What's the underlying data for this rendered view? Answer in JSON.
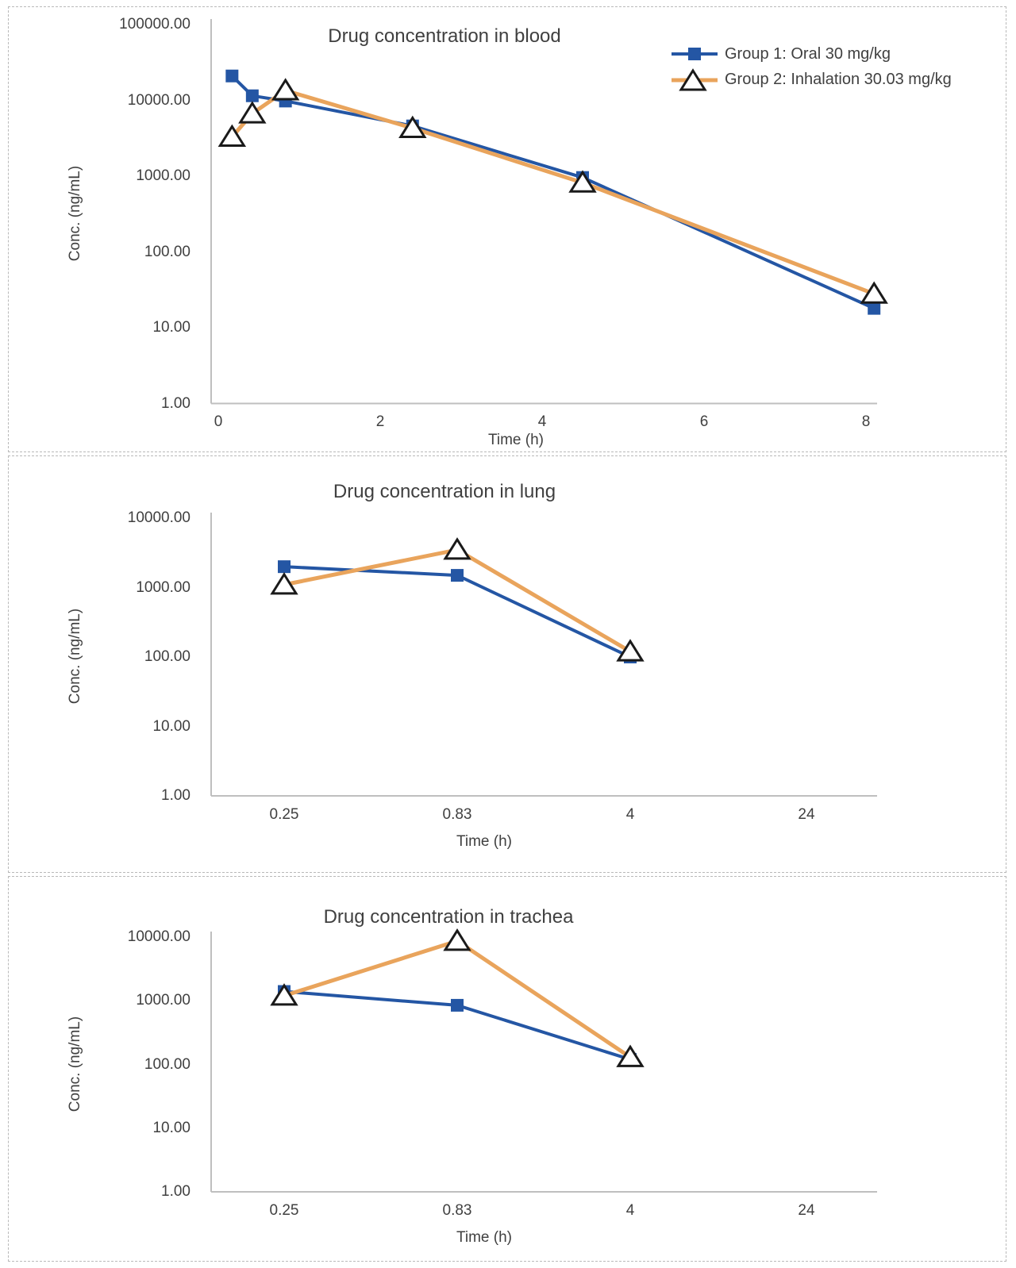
{
  "colors": {
    "group1_blue": "#2456a4",
    "group2_orange": "#e9a45c",
    "marker_fill": "#ffffff",
    "marker_outline": "#1a1a1a",
    "axis_line": "#bfbfbf",
    "text": "#404040",
    "panel_border": "#b9b9b9"
  },
  "legend": {
    "items": [
      {
        "label": "Group 1: Oral 30 mg/kg",
        "series": "group1",
        "marker": "square"
      },
      {
        "label": "Group 2: Inhalation 30.03 mg/kg",
        "series": "group2",
        "marker": "triangle"
      }
    ]
  },
  "chart_data": [
    {
      "id": "blood",
      "type": "line",
      "title": "Drug concentration in blood",
      "xlabel": "Time (h)",
      "ylabel": "Conc. (ng/mL)",
      "x_scale": "linear",
      "x_ticks": [
        0,
        2,
        4,
        6,
        8
      ],
      "xlim": [
        0,
        8.2
      ],
      "y_scale": "log",
      "ylim": [
        1,
        100000
      ],
      "y_tick_labels": [
        "100000.00",
        "10000.00",
        "1000.00",
        "100.00",
        "10.00",
        "1.00"
      ],
      "grid": false,
      "legend_position": "top-right",
      "series": [
        {
          "name": "Group 1: Oral 30 mg/kg",
          "marker": "square",
          "x": [
            0.17,
            0.42,
            0.83,
            2.4,
            4.5,
            8.1
          ],
          "y": [
            21000,
            11500,
            9800,
            4600,
            960,
            18
          ]
        },
        {
          "name": "Group 2: Inhalation 30.03 mg/kg",
          "marker": "triangle",
          "x": [
            0.17,
            0.42,
            0.83,
            2.4,
            4.5,
            8.1
          ],
          "y": [
            3300,
            6700,
            13500,
            4300,
            820,
            28
          ]
        }
      ]
    },
    {
      "id": "lung",
      "type": "line",
      "title": "Drug concentration in lung",
      "xlabel": "Time (h)",
      "ylabel": "Conc. (ng/mL)",
      "x_scale": "categorical",
      "categories": [
        "0.25",
        "0.83",
        "4",
        "24"
      ],
      "y_scale": "log",
      "ylim": [
        1,
        10000
      ],
      "y_tick_labels": [
        "10000.00",
        "1000.00",
        "100.00",
        "10.00",
        "1.00"
      ],
      "grid": false,
      "series": [
        {
          "name": "Group 1: Oral 30 mg/kg",
          "marker": "square",
          "values": [
            2000,
            1500,
            100,
            null
          ]
        },
        {
          "name": "Group 2: Inhalation 30.03 mg/kg",
          "marker": "triangle",
          "values": [
            1100,
            3500,
            120,
            null
          ]
        }
      ]
    },
    {
      "id": "trachea",
      "type": "line",
      "title": "Drug concentration in trachea",
      "xlabel": "Time (h)",
      "ylabel": "Conc. (ng/mL)",
      "x_scale": "categorical",
      "categories": [
        "0.25",
        "0.83",
        "4",
        "24"
      ],
      "y_scale": "log",
      "ylim": [
        1,
        10000
      ],
      "y_tick_labels": [
        "10000.00",
        "1000.00",
        "100.00",
        "10.00",
        "1.00"
      ],
      "grid": false,
      "series": [
        {
          "name": "Group 1: Oral 30 mg/kg",
          "marker": "square",
          "values": [
            1400,
            850,
            120,
            null
          ]
        },
        {
          "name": "Group 2: Inhalation 30.03 mg/kg",
          "marker": "triangle",
          "values": [
            1200,
            8700,
            130,
            null
          ]
        }
      ]
    }
  ]
}
